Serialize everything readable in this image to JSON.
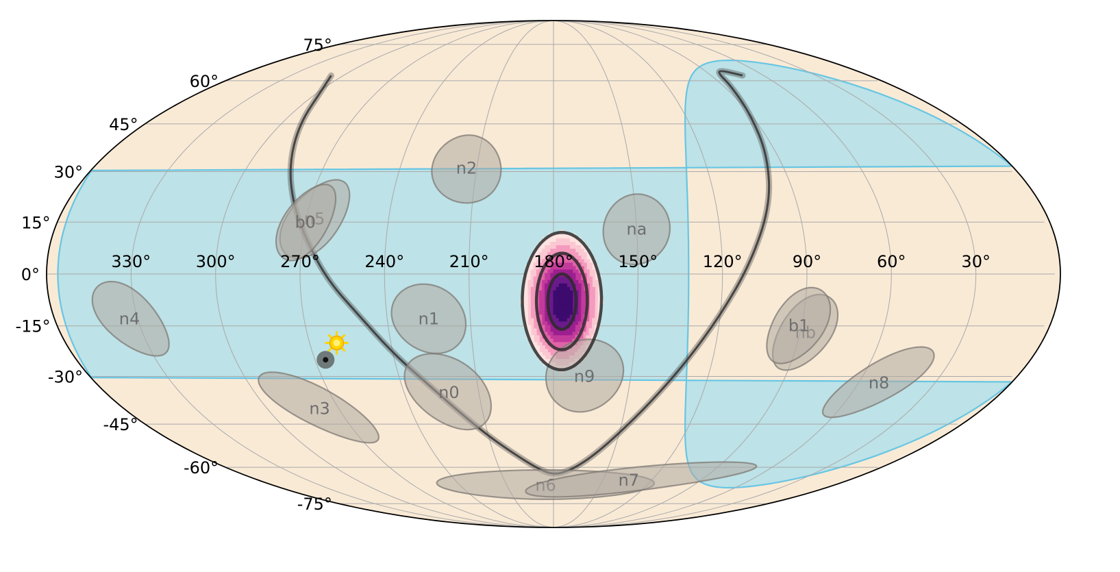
{
  "chart_data": {
    "type": "map",
    "projection": "mollweide",
    "longitude_direction": "decreasing-to-right",
    "grid": true,
    "colors": {
      "sky": "#f9ead6",
      "grid": "#a9a9a9",
      "detector_fill": "#b0aaa2",
      "earth_occultation_fill": "#b3e0ea",
      "earth_occultation_edge": "#66c6e4",
      "galactic_plane": "#3a3a3a",
      "localization_contour": "#2b2b2b",
      "sun": "#ffd400"
    },
    "lon_tick_labels": [
      "330°",
      "300°",
      "270°",
      "240°",
      "210°",
      "180°",
      "150°",
      "120°",
      "90°",
      "60°",
      "30°"
    ],
    "lon_tick_values": [
      330,
      300,
      270,
      240,
      210,
      180,
      150,
      120,
      90,
      60,
      30
    ],
    "lat_tick_labels": [
      "75°",
      "60°",
      "45°",
      "30°",
      "15°",
      "0°",
      "-15°",
      "-30°",
      "-45°",
      "-60°",
      "-75°"
    ],
    "lat_tick_values": [
      75,
      60,
      45,
      30,
      15,
      0,
      -15,
      -30,
      -45,
      -60,
      -75
    ],
    "detectors": [
      {
        "label": "n0",
        "lon": 222,
        "lat": -35,
        "a": 14,
        "b": 11,
        "tilt": -30
      },
      {
        "label": "n1",
        "lon": 225,
        "lat": -13,
        "a": 13,
        "b": 10,
        "tilt": -10
      },
      {
        "label": "n2",
        "lon": 214,
        "lat": 31,
        "a": 12,
        "b": 10,
        "tilt": -25
      },
      {
        "label": "n3",
        "lon": 278,
        "lat": -40,
        "a": 16,
        "b": 8,
        "tilt": -35
      },
      {
        "label": "n4",
        "lon": 333,
        "lat": -13,
        "a": 13,
        "b": 9,
        "tilt": -40
      },
      {
        "label": "n5",
        "lon": 267,
        "lat": 16,
        "a": 13,
        "b": 9,
        "tilt": 50
      },
      {
        "label": "n6",
        "lon": 185,
        "lat": -67,
        "a": 27,
        "b": 6,
        "tilt": 0
      },
      {
        "label": "n7",
        "lon": 134,
        "lat": -65,
        "a": 28,
        "b": 5,
        "tilt": 10
      },
      {
        "label": "n8",
        "lon": 52,
        "lat": -32,
        "a": 15,
        "b": 8,
        "tilt": 35
      },
      {
        "label": "n9",
        "lon": 168,
        "lat": -30,
        "a": 13,
        "b": 11,
        "tilt": 10
      },
      {
        "label": "na",
        "lon": 150,
        "lat": 13,
        "a": 12,
        "b": 10,
        "tilt": 20
      },
      {
        "label": "nb",
        "lon": 88,
        "lat": -17,
        "a": 12,
        "b": 9,
        "tilt": 55
      },
      {
        "label": "b0",
        "lon": 270,
        "lat": 15,
        "a": 12,
        "b": 8,
        "tilt": 60
      },
      {
        "label": "b1",
        "lon": 91,
        "lat": -15,
        "a": 12,
        "b": 9,
        "tilt": 55
      }
    ],
    "earth_occultation": {
      "lon": 64,
      "lat": 0,
      "radius": 68
    },
    "galactic_plane": {
      "lon": [
        307,
        300,
        292,
        284,
        276,
        268,
        260,
        250,
        240,
        230,
        220,
        210,
        200,
        190,
        180,
        170,
        160,
        150,
        140,
        130,
        120,
        110,
        100,
        94,
        90,
        86,
        84,
        80,
        72
      ],
      "lat": [
        62,
        57,
        45,
        32,
        20,
        9,
        -2,
        -12,
        -23,
        -32,
        -41,
        -49,
        -55,
        -60,
        -63,
        -61,
        -56,
        -48,
        -38,
        -26,
        -12,
        3,
        20,
        35,
        48,
        58,
        63,
        64,
        62
      ]
    },
    "sun": {
      "lon": 260,
      "lat": -20
    },
    "marker": {
      "lon": 266,
      "lat": -25
    },
    "localization": {
      "center_lon": 177,
      "center_lat": -8,
      "levels": [
        {
          "a": 5,
          "b": 8
        },
        {
          "a": 9,
          "b": 14
        },
        {
          "a": 14,
          "b": 20
        }
      ]
    }
  }
}
